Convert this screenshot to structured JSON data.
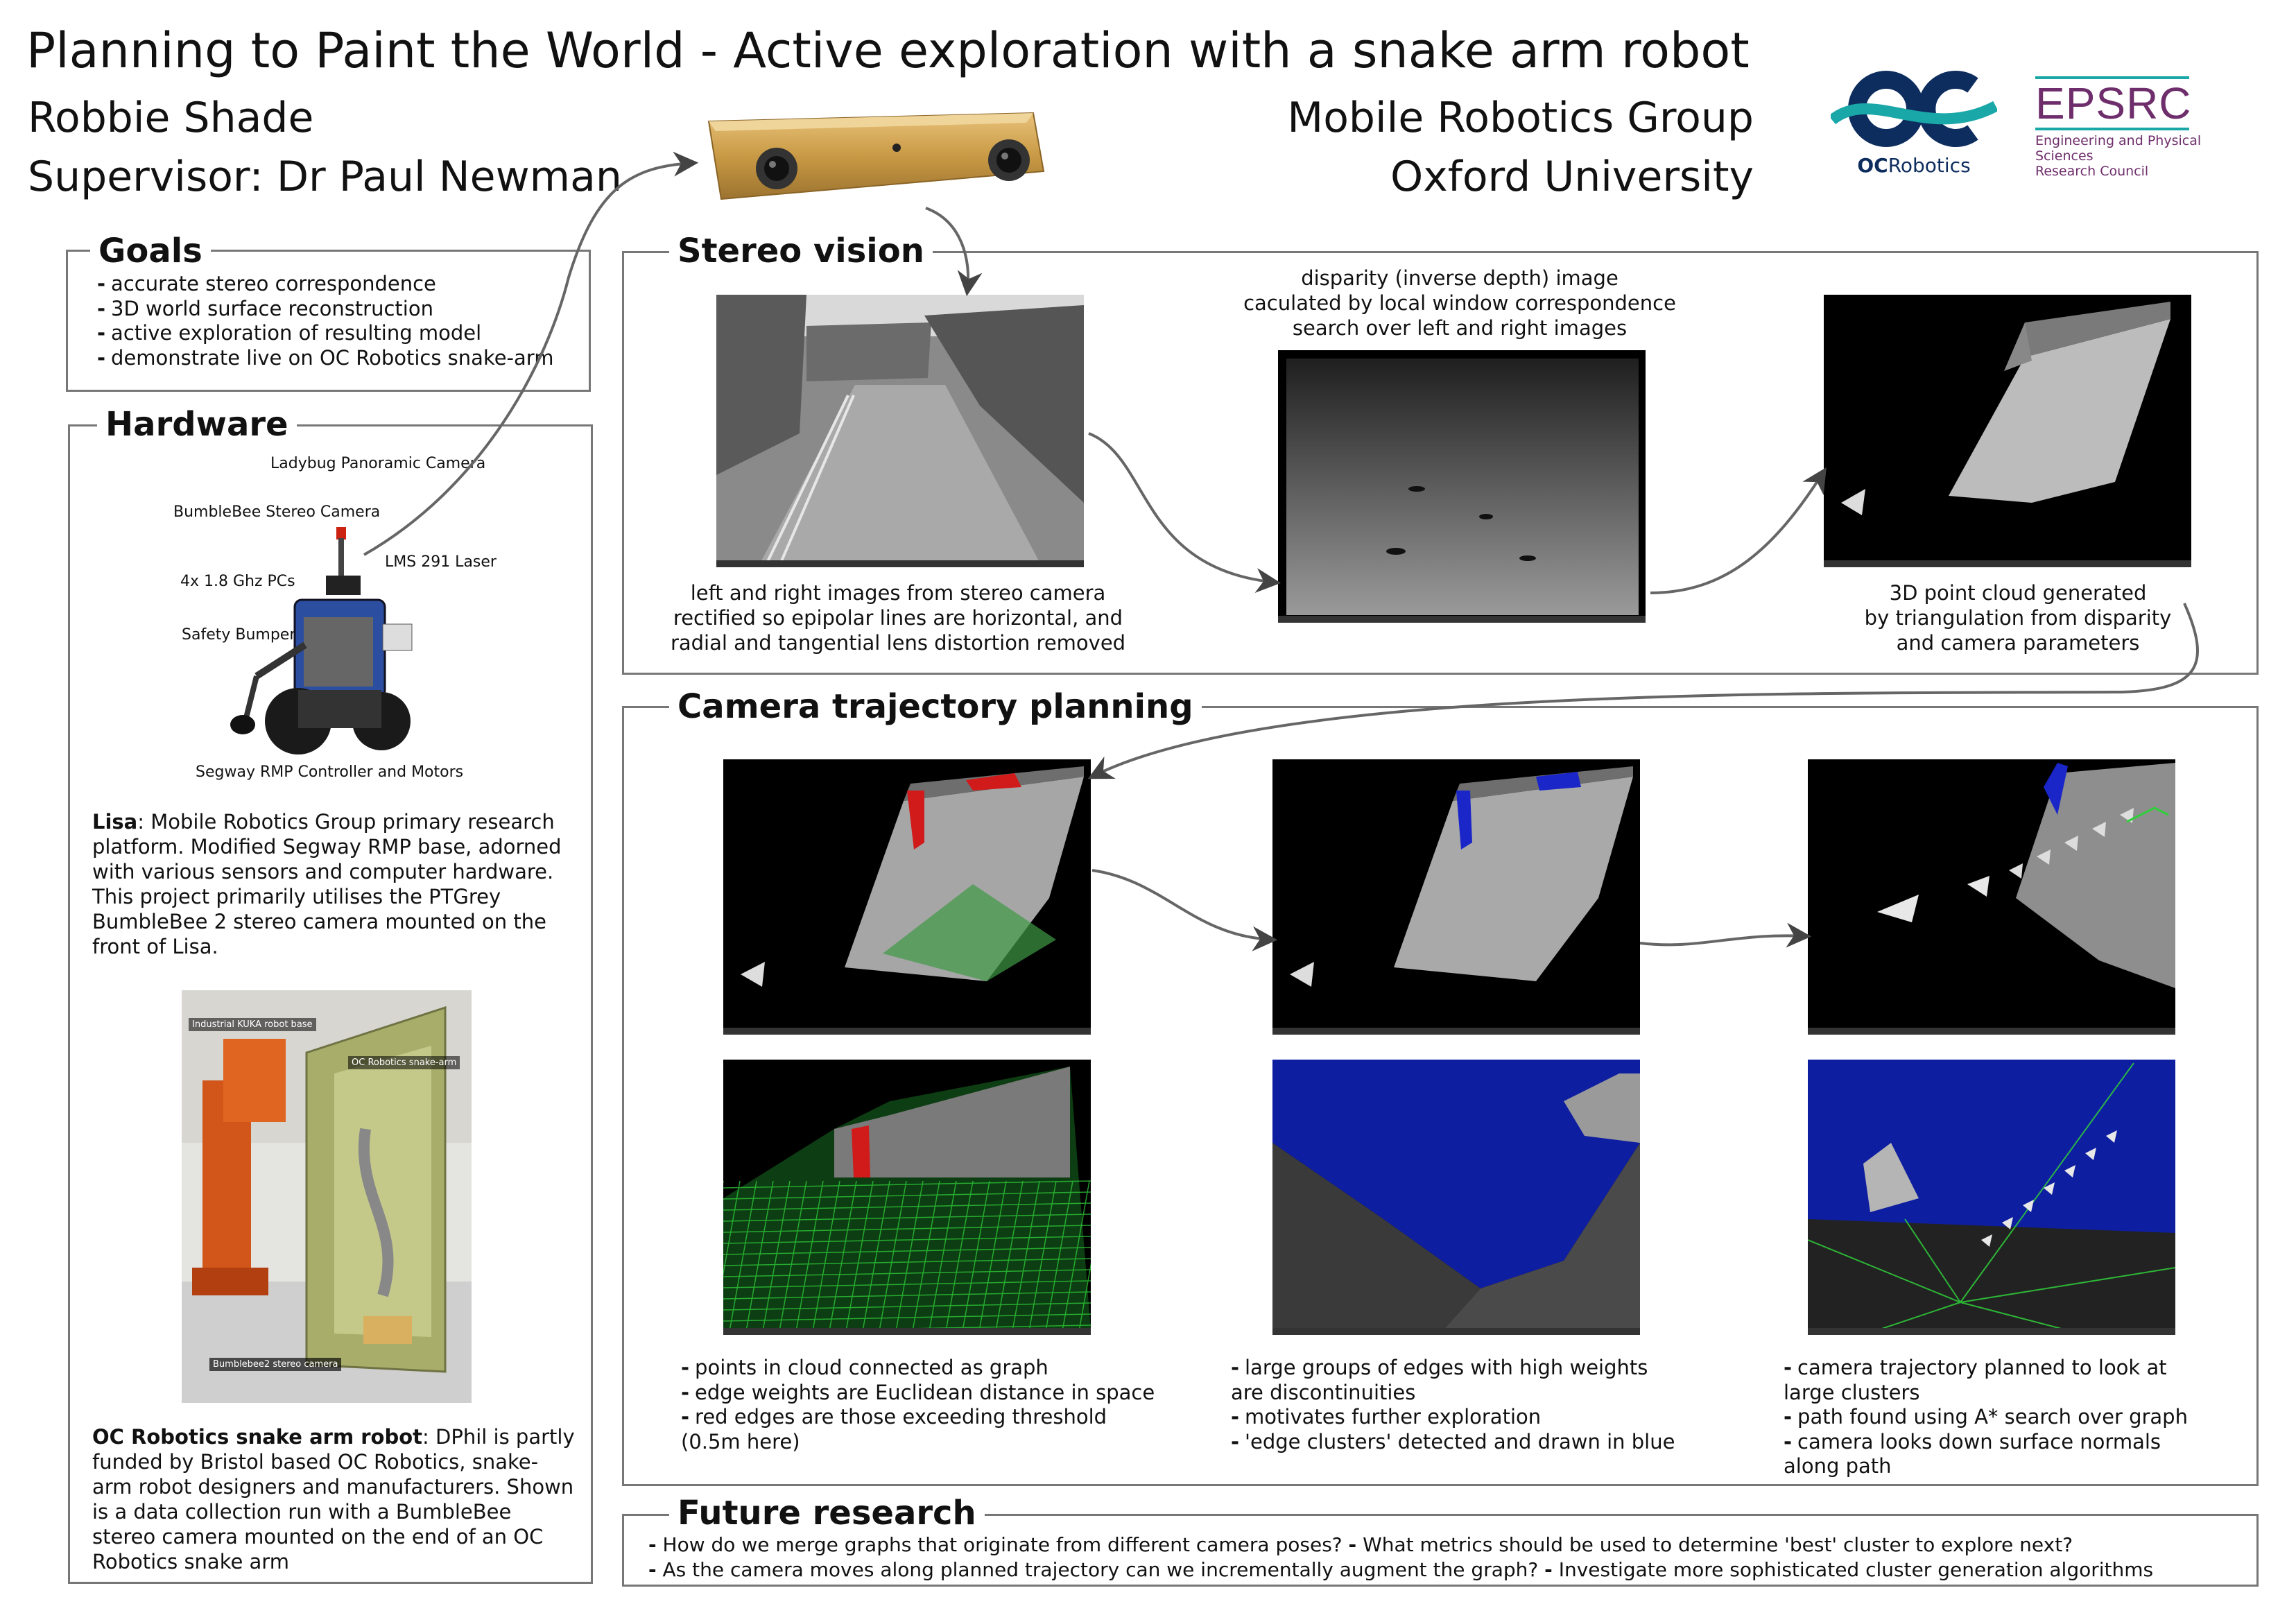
{
  "header": {
    "title": "Planning to Paint the World - Active exploration with a snake arm robot",
    "author": "Robbie Shade",
    "supervisor": "Supervisor: Dr Paul Newman",
    "group": "Mobile Robotics Group",
    "university": "Oxford University"
  },
  "logos": {
    "oc_mark": "OC",
    "oc_bold": "OC",
    "oc_rest": "Robotics",
    "epsrc": "EPSRC",
    "epsrc_line1": "Engineering and Physical Sciences",
    "epsrc_line2": "Research Council"
  },
  "goals": {
    "title": "Goals",
    "items": [
      "accurate stereo correspondence",
      "3D world surface reconstruction",
      "active exploration of resulting model",
      "demonstrate live on OC Robotics snake-arm"
    ]
  },
  "hardware": {
    "title": "Hardware",
    "labels": {
      "ladybug": "Ladybug Panoramic\nCamera",
      "bumblebee": "BumbleBee Stereo\nCamera",
      "pcs": "4x 1.8 Ghz PCs",
      "lms": "LMS 291\nLaser",
      "bumper": "Safety\nBumper",
      "segway": "Segway RMP Controller and Motors"
    },
    "lisa_name": "Lisa",
    "lisa_text": ": Mobile Robotics Group primary research platform. Modified Segway RMP base, adorned with various sensors and computer hardware. This project primarily utilises the PTGrey BumbleBee 2 stereo camera mounted on the front of Lisa.",
    "photo_labels": {
      "kuka": "Industrial KUKA robot base",
      "snake": "OC Robotics snake-arm",
      "bumblebee2": "Bumblebee2 stereo camera"
    },
    "oc_name": "OC Robotics snake arm robot",
    "oc_text": ": DPhil is partly funded by Bristol based OC Robotics, snake-arm robot designers and manufacturers. Shown is a data collection run with a BumbleBee stereo camera mounted on the end of an OC Robotics snake arm"
  },
  "stereo": {
    "title": "Stereo vision",
    "cap_left": "left and right images from stereo camera\nrectified so epipolar lines are horizontal, and\nradial and tangential lens distortion removed",
    "cap_mid": "disparity (inverse depth) image\ncaculated by local window correspondence\nsearch over left and right images",
    "cap_right": "3D point cloud generated\nby triangulation from disparity\nand camera parameters"
  },
  "planning": {
    "title": "Camera trajectory planning",
    "col1": [
      "points in cloud connected as graph",
      "edge weights are Euclidean distance in space",
      "red edges are those exceeding threshold\n(0.5m here)"
    ],
    "col2": [
      "large groups of edges with high weights\nare discontinuities",
      "motivates further exploration",
      "'edge clusters' detected and drawn in blue"
    ],
    "col3": [
      "camera trajectory planned to look at\nlarge clusters",
      "path found using A* search over graph",
      "camera looks down surface normals\nalong path"
    ]
  },
  "future": {
    "title": "Future research",
    "line1a": "How do we merge graphs that originate from different camera poses?",
    "line1b": "What metrics should be used to determine 'best' cluster to explore next?",
    "line2a": "As the camera moves along planned trajectory can we incrementally augment the graph?",
    "line2b": "Investigate more sophisticated cluster generation algorithms"
  },
  "bullet": "-",
  "colors": {
    "oc_navy": "#0d2d5e",
    "oc_teal": "#1aa7a8",
    "epsrc_purple": "#6e2d6b",
    "panel_border": "#777777",
    "edge_red": "#d11a1a",
    "cluster_blue": "#1a26c8",
    "graph_green": "#2fd03a"
  }
}
